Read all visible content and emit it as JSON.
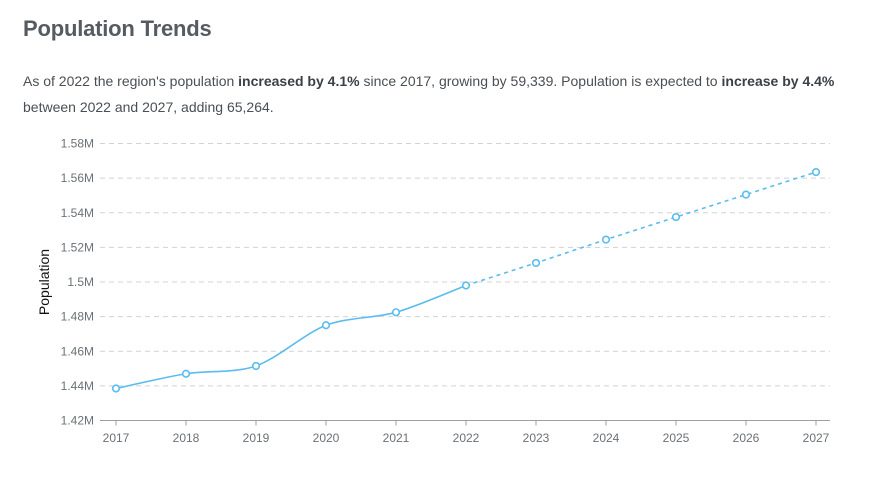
{
  "header": {
    "title": "Population Trends"
  },
  "summary": {
    "s1": "As of 2022 the region's population ",
    "b1": "increased by 4.1%",
    "s2": " since 2017, growing by 59,339. Population is expected to ",
    "b2": "increase by 4.4%",
    "s3": " between 2022 and 2027, adding 65,264."
  },
  "colors": {
    "line": "#5bbcef",
    "grid": "#cfd3d6",
    "axis": "#9aa0a4"
  },
  "chart_data": {
    "type": "line",
    "title": "",
    "xlabel": "",
    "ylabel": "Population",
    "x": [
      2017,
      2018,
      2019,
      2020,
      2021,
      2022,
      2023,
      2024,
      2025,
      2026,
      2027
    ],
    "y_ticks": [
      "1.42M",
      "1.44M",
      "1.46M",
      "1.48M",
      "1.5M",
      "1.52M",
      "1.54M",
      "1.56M",
      "1.58M"
    ],
    "ylim": [
      1420000,
      1580000
    ],
    "grid": true,
    "series": [
      {
        "style": "solid",
        "x": [
          2017,
          2018,
          2019,
          2020,
          2021,
          2022
        ],
        "values": [
          1438500,
          1447000,
          1451500,
          1475000,
          1482500,
          1498000
        ]
      },
      {
        "style": "dashed",
        "x": [
          2022,
          2023,
          2024,
          2025,
          2026,
          2027
        ],
        "values": [
          1498000,
          1511000,
          1524500,
          1537500,
          1550500,
          1563500
        ]
      }
    ]
  }
}
